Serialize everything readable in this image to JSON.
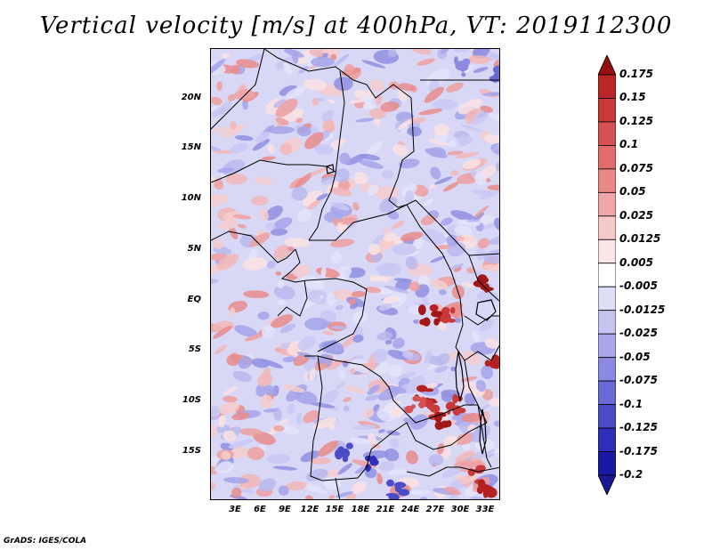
{
  "title": "Vertical velocity [m/s] at 400hPa, VT: 2019112300",
  "credit": "GrADS: IGES/COLA",
  "map": {
    "lat_ticks": [
      "20N",
      "15N",
      "10N",
      "5N",
      "EQ",
      "5S",
      "10S",
      "15S"
    ],
    "lon_ticks": [
      "3E",
      "6E",
      "9E",
      "12E",
      "15E",
      "18E",
      "21E",
      "24E",
      "27E",
      "30E",
      "33E"
    ]
  },
  "colorbar": {
    "labels": [
      "0.175",
      "0.15",
      "0.125",
      "0.1",
      "0.075",
      "0.05",
      "0.025",
      "0.0125",
      "0.005",
      "-0.005",
      "-0.0125",
      "-0.025",
      "-0.05",
      "-0.075",
      "-0.1",
      "-0.125",
      "-0.175",
      "-0.2"
    ],
    "colors": [
      "#a01818",
      "#b82626",
      "#c83a3a",
      "#d65252",
      "#e06c6c",
      "#e88888",
      "#f0a6a6",
      "#f6c8c8",
      "#fbe6e6",
      "#ffffff",
      "#dedef8",
      "#c4c4f2",
      "#a8a8ea",
      "#8a8ae0",
      "#6a6ad6",
      "#4c4cc8",
      "#2e2eb6",
      "#1a1aa0"
    ],
    "min_arrow_color": "#1a1a90",
    "max_arrow_color": "#961010"
  }
}
